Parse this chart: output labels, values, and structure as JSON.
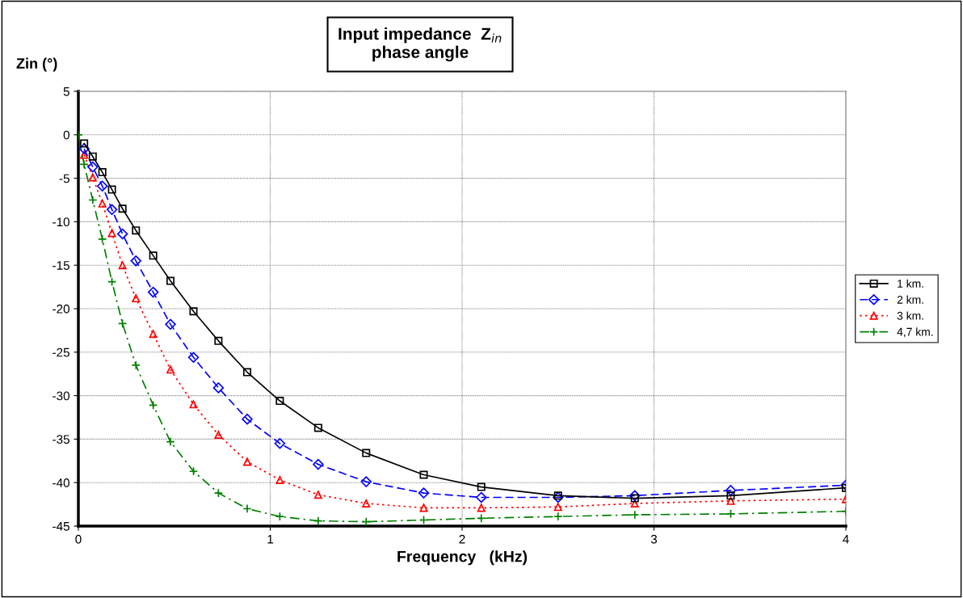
{
  "chart_data": {
    "type": "line",
    "title": "Input impedance  Z$_{in}$\nphase angle",
    "xlabel": "Frequency   (kHz)",
    "ylabel": "Zin (°)",
    "x": [
      0.03,
      0.075,
      0.125,
      0.175,
      0.23,
      0.3,
      0.39,
      0.48,
      0.6,
      0.73,
      0.88,
      1.05,
      1.25,
      1.5,
      1.8,
      2.1,
      2.5,
      2.9,
      3.4,
      4.0
    ],
    "series": [
      {
        "name": "1 km.",
        "color": "#000000",
        "marker": "square",
        "line_style": "solid",
        "values": [
          -1.0,
          -2.5,
          -4.3,
          -6.3,
          -8.5,
          -11.0,
          -13.9,
          -16.8,
          -20.3,
          -23.7,
          -27.3,
          -30.6,
          -33.7,
          -36.6,
          -39.1,
          -40.5,
          -41.5,
          -41.8,
          -41.5,
          -40.6
        ]
      },
      {
        "name": "2 km.",
        "color": "#0000ff",
        "marker": "diamond",
        "line_style": "dashed",
        "values": [
          -1.6,
          -3.7,
          -5.9,
          -8.6,
          -11.4,
          -14.5,
          -18.1,
          -21.8,
          -25.6,
          -29.1,
          -32.7,
          -35.5,
          -37.9,
          -39.9,
          -41.2,
          -41.7,
          -41.7,
          -41.5,
          -40.9,
          -40.3
        ]
      },
      {
        "name": "3 km.",
        "color": "#ff0000",
        "marker": "triangle",
        "line_style": "dotted",
        "values": [
          -2.3,
          -4.9,
          -7.9,
          -11.3,
          -15.0,
          -18.8,
          -22.9,
          -27.0,
          -31.0,
          -34.5,
          -37.6,
          -39.7,
          -41.4,
          -42.4,
          -42.9,
          -42.9,
          -42.8,
          -42.4,
          -42.1,
          -41.9
        ]
      },
      {
        "name": "4,7 km.",
        "color": "#008000",
        "marker": "cross",
        "line_style": "dashdot",
        "x": [
          0,
          0.03,
          0.075,
          0.125,
          0.175,
          0.23,
          0.3,
          0.39,
          0.48,
          0.6,
          0.73,
          0.88,
          1.05,
          1.25,
          1.5,
          1.8,
          2.1,
          2.5,
          2.9,
          3.4,
          4.0
        ],
        "values": [
          0,
          -3.4,
          -7.5,
          -12.0,
          -16.9,
          -21.7,
          -26.5,
          -31.1,
          -35.3,
          -38.7,
          -41.2,
          -43.0,
          -43.9,
          -44.4,
          -44.5,
          -44.3,
          -44.1,
          -43.9,
          -43.7,
          -43.6,
          -43.3
        ]
      }
    ],
    "xlim": [
      0,
      4
    ],
    "xticks": [
      0,
      1,
      2,
      3,
      4
    ],
    "ylim": [
      -45,
      5
    ],
    "yticks": [
      -45,
      -40,
      -35,
      -30,
      -25,
      -20,
      -15,
      -10,
      -5,
      0,
      5
    ],
    "grid": true,
    "legend": "right"
  }
}
